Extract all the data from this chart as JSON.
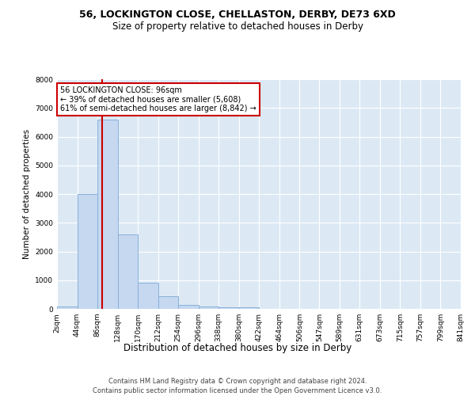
{
  "title": "56, LOCKINGTON CLOSE, CHELLASTON, DERBY, DE73 6XD",
  "subtitle": "Size of property relative to detached houses in Derby",
  "xlabel": "Distribution of detached houses by size in Derby",
  "ylabel": "Number of detached properties",
  "footer1": "Contains HM Land Registry data © Crown copyright and database right 2024.",
  "footer2": "Contains public sector information licensed under the Open Government Licence v3.0.",
  "annotation_line1": "56 LOCKINGTON CLOSE: 96sqm",
  "annotation_line2": "← 39% of detached houses are smaller (5,608)",
  "annotation_line3": "61% of semi-detached houses are larger (8,842) →",
  "property_size_sqm": 96,
  "bar_edges": [
    2,
    44,
    86,
    128,
    170,
    212,
    254,
    296,
    338,
    380,
    422,
    464,
    506,
    547,
    589,
    631,
    673,
    715,
    757,
    799,
    841
  ],
  "bar_heights": [
    80,
    4000,
    6600,
    2600,
    900,
    450,
    130,
    70,
    55,
    50,
    0,
    0,
    0,
    0,
    0,
    0,
    0,
    0,
    0,
    0
  ],
  "bar_color": "#c5d8f0",
  "bar_edge_color": "#8ab0d8",
  "vline_color": "#cc0000",
  "vline_x": 96,
  "annotation_box_color": "#cc0000",
  "annotation_text_color": "#000000",
  "plot_bg_color": "#dce9f5",
  "ylim": [
    0,
    8000
  ],
  "yticks": [
    0,
    1000,
    2000,
    3000,
    4000,
    5000,
    6000,
    7000,
    8000
  ],
  "tick_labels": [
    "2sqm",
    "44sqm",
    "86sqm",
    "128sqm",
    "170sqm",
    "212sqm",
    "254sqm",
    "296sqm",
    "338sqm",
    "380sqm",
    "422sqm",
    "464sqm",
    "506sqm",
    "547sqm",
    "589sqm",
    "631sqm",
    "673sqm",
    "715sqm",
    "757sqm",
    "799sqm",
    "841sqm"
  ],
  "title_fontsize": 9,
  "subtitle_fontsize": 8.5,
  "xlabel_fontsize": 8.5,
  "ylabel_fontsize": 7.5,
  "tick_fontsize": 6.5,
  "footer_fontsize": 6,
  "annot_fontsize": 7
}
